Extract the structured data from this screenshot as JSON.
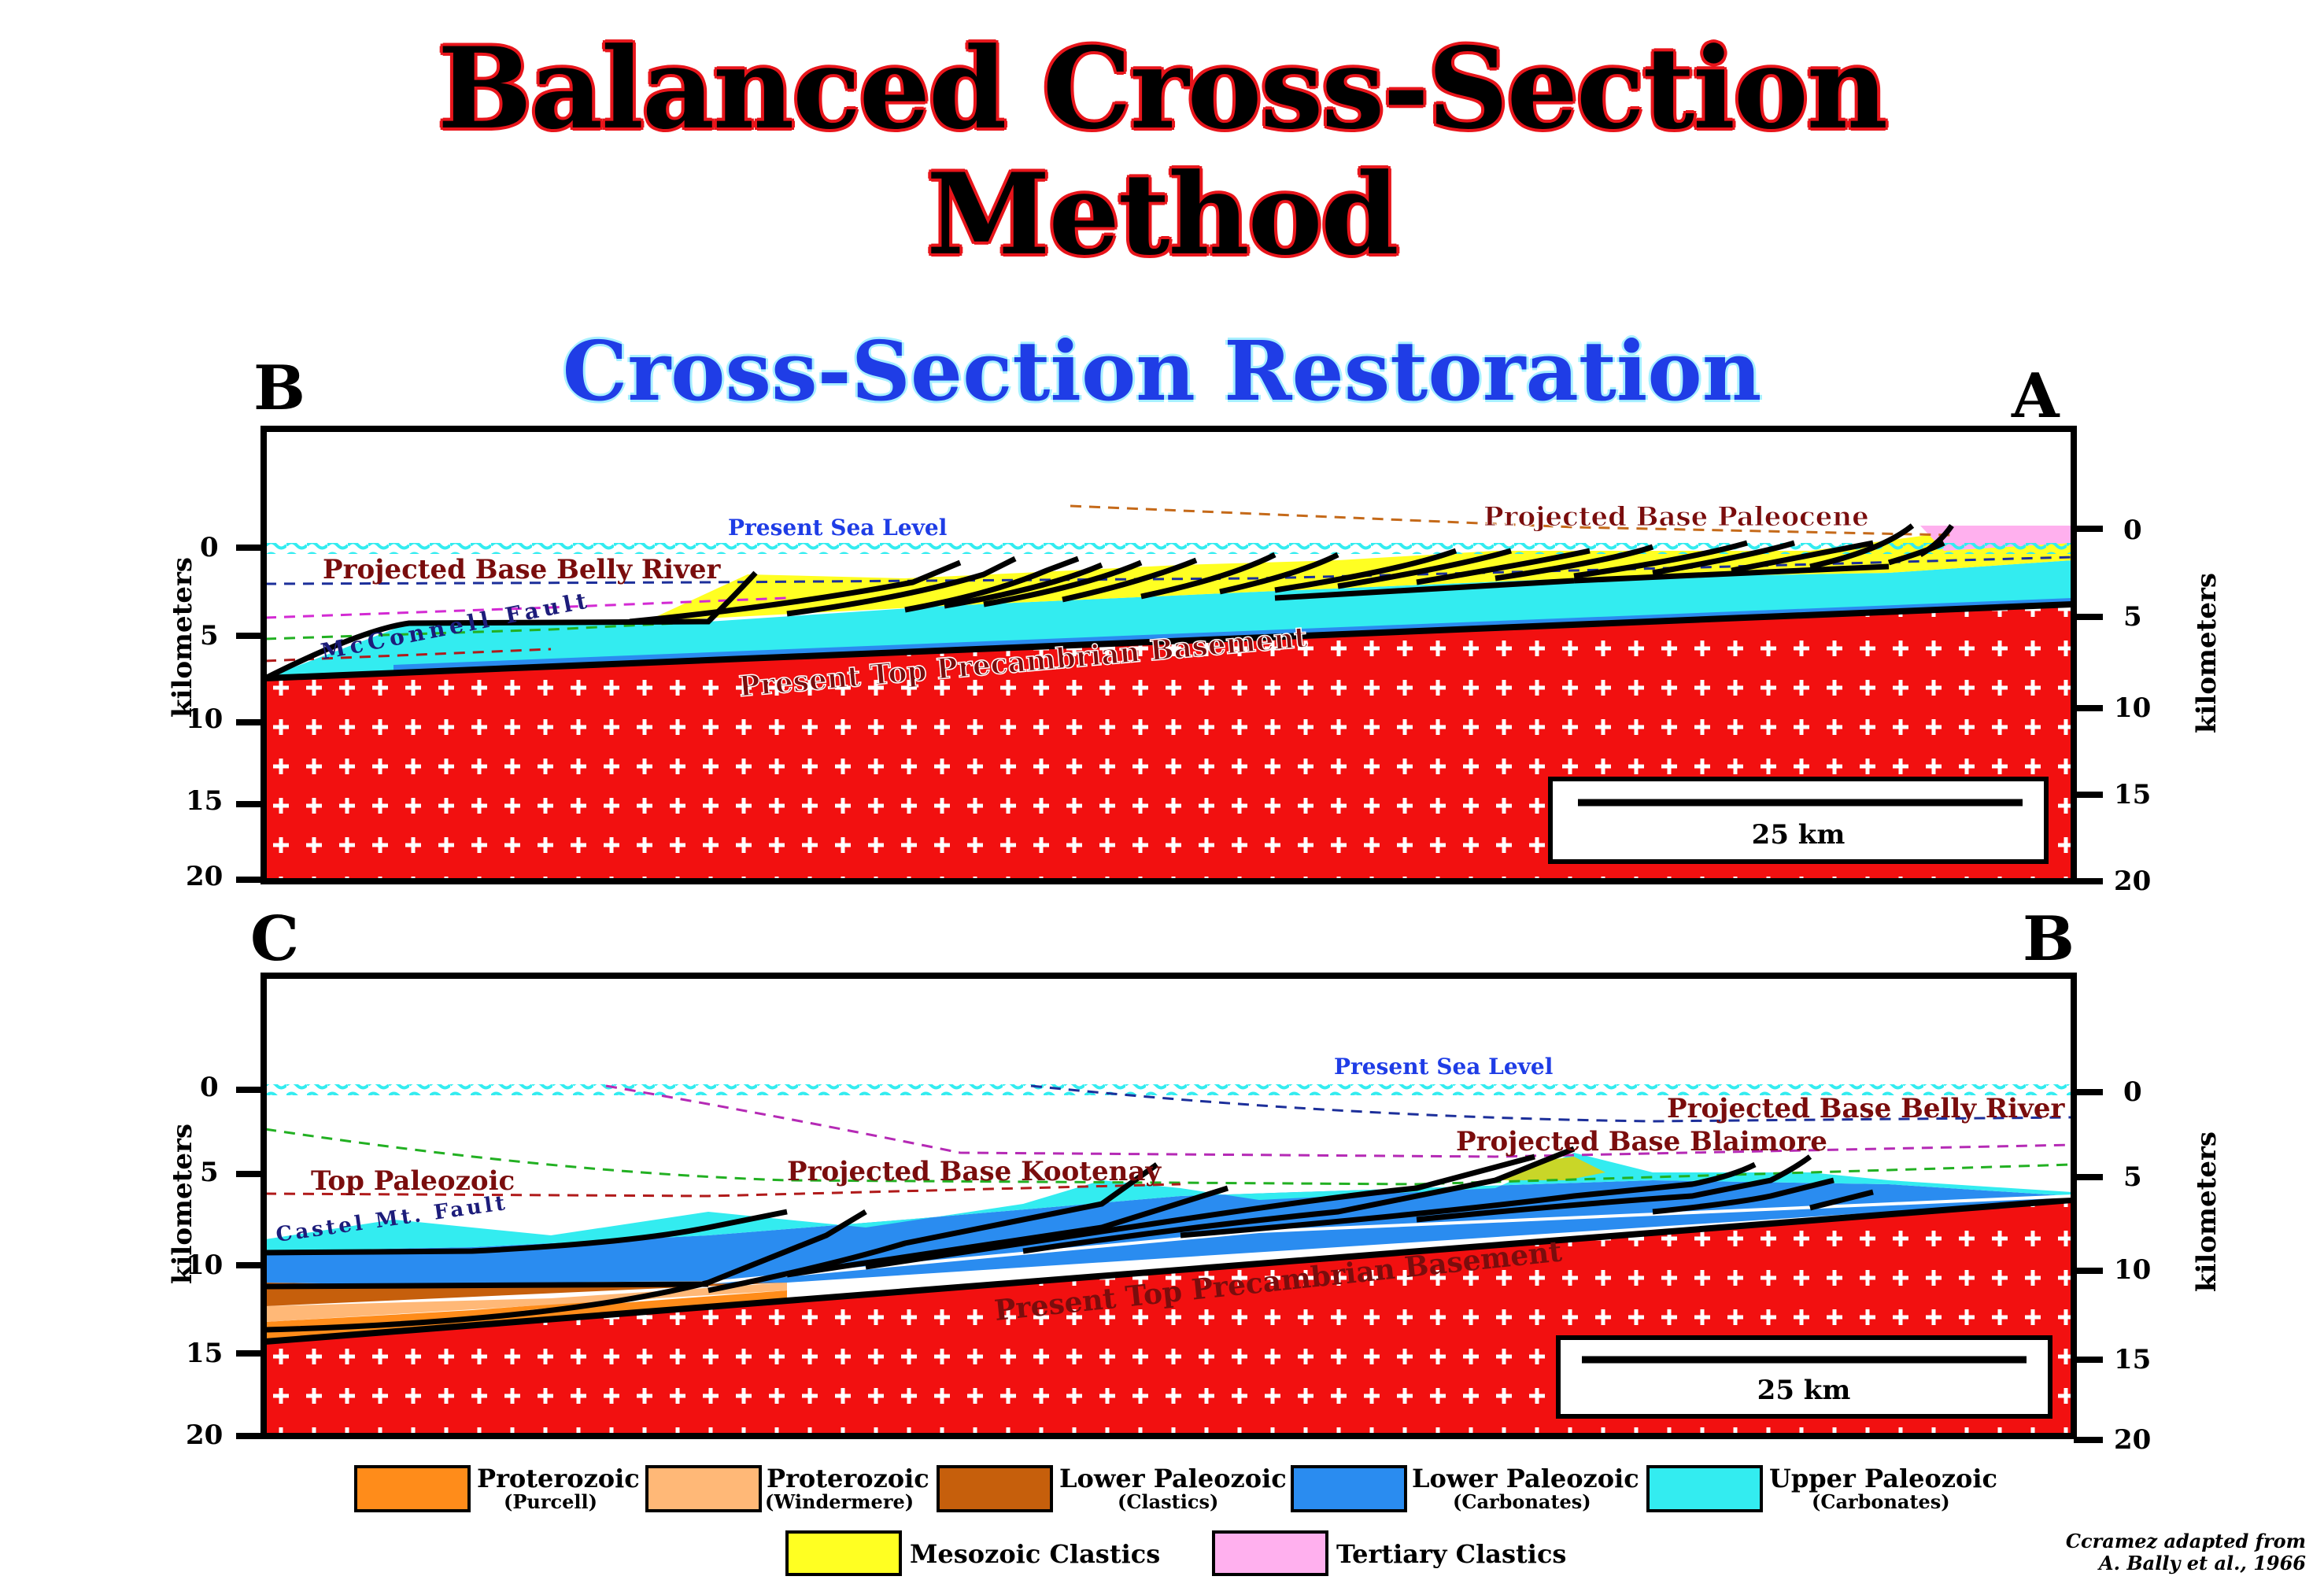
{
  "title_line1": "Balanced Cross-Section",
  "title_line2": "Method",
  "subtitle": "Cross-Section Restoration",
  "top_section": {
    "left_end": "B",
    "right_end": "A",
    "depth_ticks": [
      "0",
      "5",
      "10",
      "15",
      "20"
    ],
    "axis_label": "kilometers",
    "labels": {
      "sea_level": "Present Sea Level",
      "paleocene": "Projected Base Paleocene",
      "belly_river": "Projected Base Belly River",
      "fault": "McConnell Fault",
      "basement": "Present Top Precambrian Basement"
    },
    "scale_bar": "25 km"
  },
  "bottom_section": {
    "left_end": "C",
    "right_end": "B",
    "depth_ticks": [
      "0",
      "5",
      "10",
      "15",
      "20"
    ],
    "axis_label": "kilometers",
    "labels": {
      "sea_level": "Present Sea Level",
      "belly_river": "Projected Base Belly River",
      "blairmore": "Projected Base Blaimore",
      "kootenay": "Projected Base Kootenay",
      "top_paleozoic": "Top Paleozoic",
      "fault": "Castel Mt. Fault",
      "basement": "Present Top Precambrian Basement"
    },
    "scale_bar": "25 km"
  },
  "legend": [
    {
      "label": "Proterozoic",
      "sub": "(Purcell)",
      "color": "#ff8c1a"
    },
    {
      "label": "Proterozoic",
      "sub": "(Windermere)",
      "color": "#ffb877"
    },
    {
      "label": "Lower Paleozoic",
      "sub": "(Clastics)",
      "color": "#c65f0c"
    },
    {
      "label": "Lower Paleozoic",
      "sub": "(Carbonates)",
      "color": "#2a8cf0"
    },
    {
      "label": "Upper Paleozoic",
      "sub": "(Carbonates)",
      "color": "#33ecf0"
    },
    {
      "label": "Mesozoic Clastics",
      "sub": "",
      "color": "#ffff22"
    },
    {
      "label": "Tertiary Clastics",
      "sub": "",
      "color": "#ffb0ee"
    }
  ],
  "credit_line1": "Ccramez adapted from",
  "credit_line2": "A. Bally et al., 1966",
  "colors": {
    "basement": "#f21010",
    "sea": "#33ecf0",
    "title_outline": "#e8151b",
    "subtitle": "#1f3de6"
  }
}
